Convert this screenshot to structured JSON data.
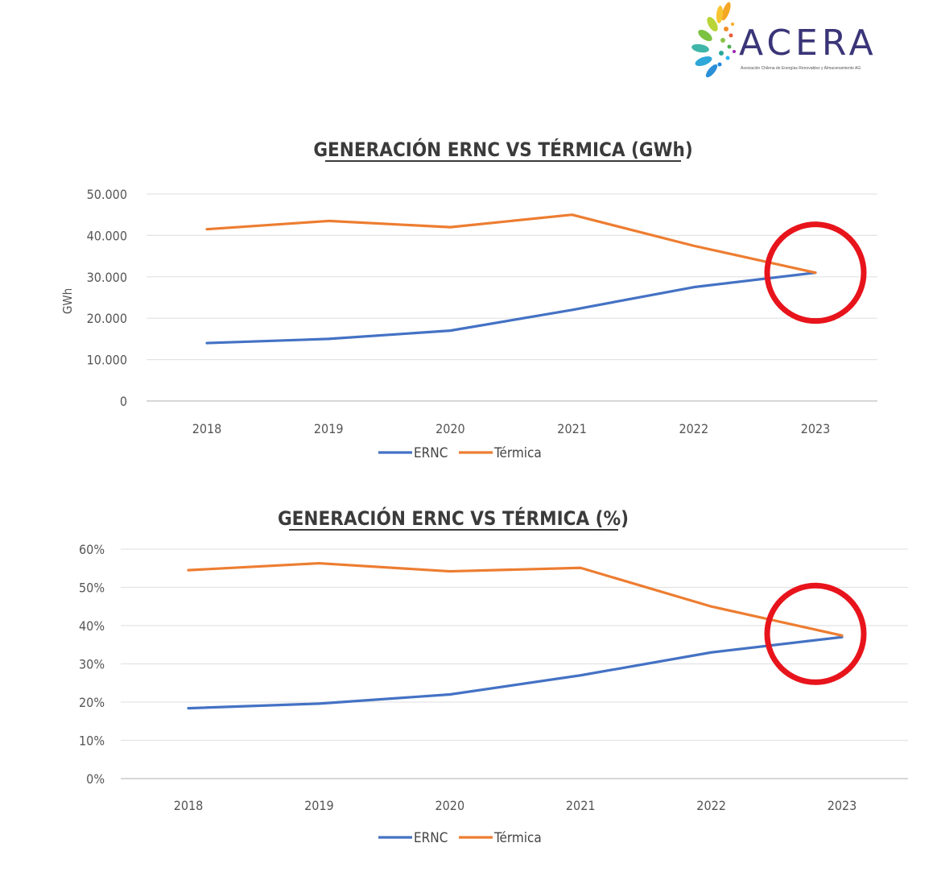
{
  "logo": {
    "name": "ACERA",
    "tagline": "Asociación Chilena de Energías Renovables y Almacenamiento AG"
  },
  "chart_data": [
    {
      "type": "line",
      "title": "GENERACIÓN ERNC VS TÉRMICA (GWh)",
      "ylabel": "GWh",
      "xlabel": "",
      "categories": [
        "2018",
        "2019",
        "2020",
        "2021",
        "2022",
        "2023"
      ],
      "yticks": [
        "0",
        "10.000",
        "20.000",
        "30.000",
        "40.000",
        "50.000"
      ],
      "ylim": [
        0,
        50000
      ],
      "grid": true,
      "legend": "bottom",
      "series": [
        {
          "name": "ERNC",
          "color": "#4472C4",
          "values": [
            14000,
            15000,
            17000,
            22000,
            27500,
            31000
          ]
        },
        {
          "name": "Térmica",
          "color": "#ED7D31",
          "values": [
            41500,
            43500,
            42000,
            45000,
            37500,
            31000
          ]
        }
      ],
      "highlight": {
        "category": "2023",
        "color": "#e8141c"
      }
    },
    {
      "type": "line",
      "title": "GENERACIÓN ERNC VS TÉRMICA (%)",
      "ylabel": "",
      "xlabel": "",
      "categories": [
        "2018",
        "2019",
        "2020",
        "2021",
        "2022",
        "2023"
      ],
      "yticks": [
        "0%",
        "10%",
        "20%",
        "30%",
        "40%",
        "50%",
        "60%"
      ],
      "ylim": [
        0,
        60
      ],
      "grid": true,
      "legend": "bottom",
      "series": [
        {
          "name": "ERNC",
          "color": "#4472C4",
          "values": [
            18.4,
            19.6,
            22,
            27,
            33,
            37
          ]
        },
        {
          "name": "Térmica",
          "color": "#ED7D31",
          "values": [
            54.5,
            56.3,
            54.2,
            55.1,
            45,
            37.4
          ]
        }
      ],
      "highlight": {
        "category": "2023",
        "color": "#e8141c"
      }
    }
  ]
}
